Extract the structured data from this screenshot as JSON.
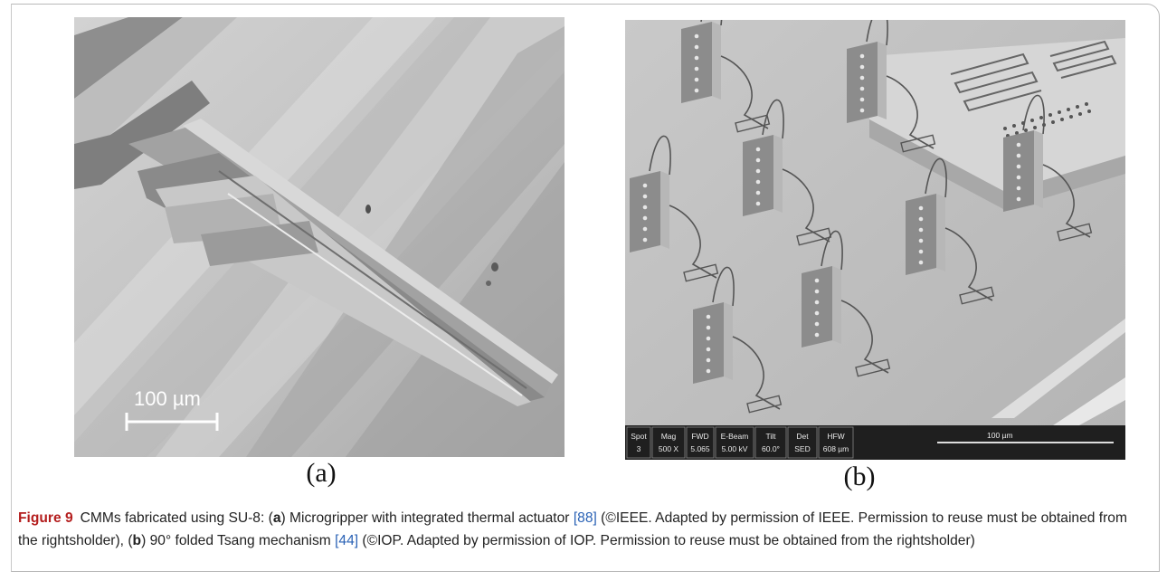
{
  "panel_a": {
    "label": "(a)",
    "scale_bar": "100 µm"
  },
  "panel_b": {
    "label": "(b)",
    "hud": {
      "cells": [
        {
          "top": "Spot",
          "bottom": "3"
        },
        {
          "top": "Mag",
          "bottom": "500 X"
        },
        {
          "top": "FWD",
          "bottom": "5.065"
        },
        {
          "top": "E-Beam",
          "bottom": "5.00 kV"
        },
        {
          "top": "Tilt",
          "bottom": "60.0°"
        },
        {
          "top": "Det",
          "bottom": "SED"
        },
        {
          "top": "HFW",
          "bottom": "608 µm"
        }
      ],
      "scale": "100 µm"
    }
  },
  "caption": {
    "figure_number": "Figure 9",
    "lead": "CMMs fabricated using SU-8: (",
    "a_letter": "a",
    "a_text": ") Microgripper with integrated thermal actuator ",
    "a_ref": "[88]",
    "a_rights": " (©IEEE. Adapted by permission of IEEE. Permission to reuse must be obtained from the rightsholder), (",
    "b_letter": "b",
    "b_text": ") 90° folded Tsang mechanism ",
    "b_ref": "[44]",
    "b_rights": " (©IOP. Adapted by permission of IOP. Permission to reuse must be obtained from the rightsholder)"
  },
  "colors": {
    "figure_number": "#b41e1e",
    "reference_link": "#2a62b5"
  }
}
